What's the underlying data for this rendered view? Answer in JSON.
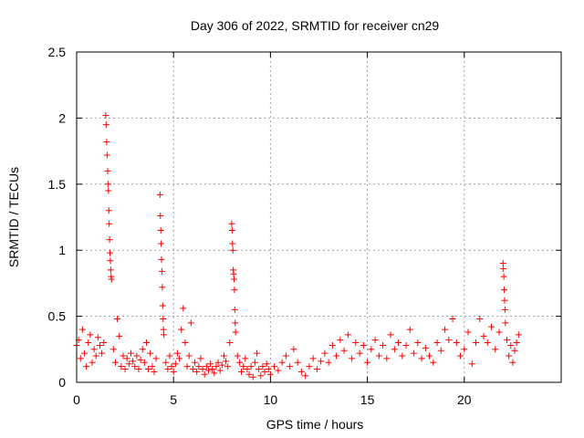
{
  "chart_data": {
    "type": "scatter",
    "title": "Day 306 of 2022, SRMTID for receiver cn29",
    "xlabel": "GPS time / hours",
    "ylabel": "SRMTID / TECUs",
    "xlim": [
      0,
      25
    ],
    "ylim": [
      0,
      2.5
    ],
    "xticks": [
      0,
      5,
      10,
      15,
      20
    ],
    "xtick_labels": [
      "0",
      "5",
      "10",
      "15",
      "20"
    ],
    "yticks": [
      0,
      0.5,
      1,
      1.5,
      2,
      2.5
    ],
    "ytick_labels": [
      "0",
      "0.5",
      "1",
      "1.5",
      "2",
      "2.5"
    ],
    "grid": true,
    "marker": "+",
    "color": "#ff0000",
    "series": [
      {
        "name": "SRMTID",
        "points": [
          [
            0.0,
            0.28
          ],
          [
            0.1,
            0.32
          ],
          [
            0.2,
            0.18
          ],
          [
            0.3,
            0.4
          ],
          [
            0.4,
            0.22
          ],
          [
            0.5,
            0.12
          ],
          [
            0.6,
            0.3
          ],
          [
            0.7,
            0.36
          ],
          [
            0.8,
            0.15
          ],
          [
            0.9,
            0.25
          ],
          [
            1.0,
            0.2
          ],
          [
            1.1,
            0.34
          ],
          [
            1.2,
            0.28
          ],
          [
            1.3,
            0.22
          ],
          [
            1.4,
            0.3
          ],
          [
            1.5,
            2.02
          ],
          [
            1.52,
            1.95
          ],
          [
            1.55,
            1.82
          ],
          [
            1.57,
            1.72
          ],
          [
            1.6,
            1.6
          ],
          [
            1.62,
            1.5
          ],
          [
            1.64,
            1.45
          ],
          [
            1.66,
            1.3
          ],
          [
            1.68,
            1.2
          ],
          [
            1.7,
            1.08
          ],
          [
            1.72,
            0.98
          ],
          [
            1.74,
            0.92
          ],
          [
            1.76,
            0.85
          ],
          [
            1.78,
            0.8
          ],
          [
            1.8,
            0.78
          ],
          [
            1.9,
            0.25
          ],
          [
            2.0,
            0.15
          ],
          [
            2.1,
            0.48
          ],
          [
            2.2,
            0.35
          ],
          [
            2.3,
            0.12
          ],
          [
            2.4,
            0.2
          ],
          [
            2.5,
            0.1
          ],
          [
            2.6,
            0.18
          ],
          [
            2.7,
            0.14
          ],
          [
            2.8,
            0.22
          ],
          [
            2.9,
            0.16
          ],
          [
            3.0,
            0.12
          ],
          [
            3.1,
            0.2
          ],
          [
            3.2,
            0.1
          ],
          [
            3.3,
            0.17
          ],
          [
            3.4,
            0.25
          ],
          [
            3.5,
            0.15
          ],
          [
            3.6,
            0.3
          ],
          [
            3.7,
            0.1
          ],
          [
            3.8,
            0.22
          ],
          [
            3.9,
            0.12
          ],
          [
            4.0,
            0.08
          ],
          [
            4.1,
            0.18
          ],
          [
            4.3,
            1.42
          ],
          [
            4.32,
            1.26
          ],
          [
            4.34,
            1.15
          ],
          [
            4.36,
            1.05
          ],
          [
            4.38,
            0.93
          ],
          [
            4.4,
            0.84
          ],
          [
            4.42,
            0.72
          ],
          [
            4.44,
            0.58
          ],
          [
            4.46,
            0.48
          ],
          [
            4.48,
            0.4
          ],
          [
            4.5,
            0.36
          ],
          [
            4.6,
            0.15
          ],
          [
            4.7,
            0.1
          ],
          [
            4.8,
            0.2
          ],
          [
            4.9,
            0.12
          ],
          [
            5.0,
            0.08
          ],
          [
            5.1,
            0.14
          ],
          [
            5.2,
            0.22
          ],
          [
            5.3,
            0.18
          ],
          [
            5.4,
            0.4
          ],
          [
            5.5,
            0.56
          ],
          [
            5.6,
            0.3
          ],
          [
            5.7,
            0.12
          ],
          [
            5.8,
            0.2
          ],
          [
            5.9,
            0.45
          ],
          [
            6.0,
            0.1
          ],
          [
            6.1,
            0.15
          ],
          [
            6.2,
            0.08
          ],
          [
            6.3,
            0.12
          ],
          [
            6.4,
            0.18
          ],
          [
            6.5,
            0.1
          ],
          [
            6.6,
            0.06
          ],
          [
            6.7,
            0.12
          ],
          [
            6.8,
            0.09
          ],
          [
            6.9,
            0.14
          ],
          [
            7.0,
            0.1
          ],
          [
            7.1,
            0.07
          ],
          [
            7.2,
            0.12
          ],
          [
            7.3,
            0.15
          ],
          [
            7.4,
            0.09
          ],
          [
            7.5,
            0.13
          ],
          [
            7.6,
            0.2
          ],
          [
            7.7,
            0.16
          ],
          [
            7.8,
            0.12
          ],
          [
            7.9,
            0.3
          ],
          [
            8.0,
            1.2
          ],
          [
            8.02,
            1.15
          ],
          [
            8.04,
            1.05
          ],
          [
            8.06,
            1.0
          ],
          [
            8.08,
            0.85
          ],
          [
            8.1,
            0.82
          ],
          [
            8.12,
            0.78
          ],
          [
            8.14,
            0.7
          ],
          [
            8.16,
            0.55
          ],
          [
            8.18,
            0.45
          ],
          [
            8.2,
            0.38
          ],
          [
            8.3,
            0.2
          ],
          [
            8.4,
            0.15
          ],
          [
            8.5,
            0.08
          ],
          [
            8.6,
            0.12
          ],
          [
            8.7,
            0.18
          ],
          [
            8.8,
            0.1
          ],
          [
            8.9,
            0.06
          ],
          [
            9.0,
            0.12
          ],
          [
            9.1,
            0.04
          ],
          [
            9.2,
            0.15
          ],
          [
            9.3,
            0.22
          ],
          [
            9.4,
            0.1
          ],
          [
            9.5,
            0.05
          ],
          [
            9.6,
            0.12
          ],
          [
            9.7,
            0.08
          ],
          [
            9.8,
            0.14
          ],
          [
            9.9,
            0.1
          ],
          [
            10.0,
            0.06
          ],
          [
            10.2,
            0.12
          ],
          [
            10.4,
            0.09
          ],
          [
            10.6,
            0.15
          ],
          [
            10.8,
            0.2
          ],
          [
            11.0,
            0.12
          ],
          [
            11.2,
            0.25
          ],
          [
            11.4,
            0.15
          ],
          [
            11.6,
            0.08
          ],
          [
            11.8,
            0.05
          ],
          [
            12.0,
            0.12
          ],
          [
            12.2,
            0.18
          ],
          [
            12.4,
            0.1
          ],
          [
            12.6,
            0.16
          ],
          [
            12.8,
            0.22
          ],
          [
            13.0,
            0.15
          ],
          [
            13.2,
            0.28
          ],
          [
            13.4,
            0.2
          ],
          [
            13.6,
            0.32
          ],
          [
            13.8,
            0.24
          ],
          [
            14.0,
            0.36
          ],
          [
            14.2,
            0.18
          ],
          [
            14.4,
            0.3
          ],
          [
            14.6,
            0.22
          ],
          [
            14.8,
            0.28
          ],
          [
            15.0,
            0.15
          ],
          [
            15.2,
            0.25
          ],
          [
            15.4,
            0.32
          ],
          [
            15.6,
            0.2
          ],
          [
            15.8,
            0.28
          ],
          [
            16.0,
            0.18
          ],
          [
            16.2,
            0.36
          ],
          [
            16.4,
            0.25
          ],
          [
            16.6,
            0.3
          ],
          [
            16.8,
            0.2
          ],
          [
            17.0,
            0.28
          ],
          [
            17.2,
            0.4
          ],
          [
            17.4,
            0.22
          ],
          [
            17.6,
            0.3
          ],
          [
            17.8,
            0.18
          ],
          [
            18.0,
            0.26
          ],
          [
            18.2,
            0.2
          ],
          [
            18.4,
            0.15
          ],
          [
            18.6,
            0.3
          ],
          [
            18.8,
            0.24
          ],
          [
            19.0,
            0.4
          ],
          [
            19.2,
            0.32
          ],
          [
            19.4,
            0.48
          ],
          [
            19.6,
            0.3
          ],
          [
            19.8,
            0.2
          ],
          [
            20.0,
            0.25
          ],
          [
            20.2,
            0.38
          ],
          [
            20.4,
            0.14
          ],
          [
            20.6,
            0.3
          ],
          [
            20.8,
            0.48
          ],
          [
            21.0,
            0.35
          ],
          [
            21.2,
            0.3
          ],
          [
            21.4,
            0.42
          ],
          [
            21.6,
            0.25
          ],
          [
            21.8,
            0.38
          ],
          [
            22.0,
            0.9
          ],
          [
            22.02,
            0.86
          ],
          [
            22.04,
            0.8
          ],
          [
            22.06,
            0.7
          ],
          [
            22.08,
            0.62
          ],
          [
            22.1,
            0.55
          ],
          [
            22.12,
            0.45
          ],
          [
            22.2,
            0.32
          ],
          [
            22.3,
            0.2
          ],
          [
            22.4,
            0.28
          ],
          [
            22.5,
            0.15
          ],
          [
            22.6,
            0.24
          ],
          [
            22.7,
            0.3
          ],
          [
            22.8,
            0.36
          ]
        ]
      }
    ]
  }
}
